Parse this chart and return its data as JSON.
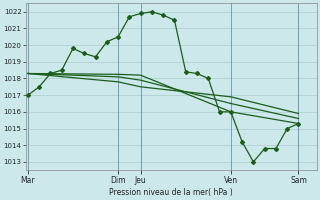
{
  "bg_color": "#cce8ea",
  "grid_color": "#aacccc",
  "line_color": "#1a5e1a",
  "x_ticks_labels": [
    "Mar",
    "Dim",
    "Jeu",
    "Ven",
    "Sam"
  ],
  "x_ticks_pos": [
    0,
    4,
    5,
    9,
    12
  ],
  "ylabel_text": "Pression niveau de la mer( hPa )",
  "ylim": [
    1012.5,
    1022.5
  ],
  "yticks": [
    1013,
    1014,
    1015,
    1016,
    1017,
    1018,
    1019,
    1020,
    1021,
    1022
  ],
  "xlim": [
    -0.1,
    12.8
  ],
  "vlines_x": [
    0,
    4,
    5,
    9,
    12
  ],
  "series1_x": [
    0,
    0.5,
    1.0,
    1.5,
    2.0,
    2.5,
    3.0,
    3.5,
    4.0,
    4.5,
    5.0,
    5.5,
    6.0,
    6.5,
    7.0,
    7.5,
    8.0,
    8.5,
    9.0,
    9.5,
    10.0,
    10.5,
    11.0,
    11.5,
    12.0
  ],
  "series1_y": [
    1017.0,
    1017.5,
    1018.3,
    1018.5,
    1019.8,
    1019.5,
    1019.3,
    1020.2,
    1020.5,
    1021.7,
    1021.9,
    1022.0,
    1021.8,
    1021.5,
    1018.4,
    1018.3,
    1018.0,
    1016.0,
    1016.0,
    1014.2,
    1013.0,
    1013.8,
    1013.8,
    1015.0,
    1015.3
  ],
  "series2_x": [
    0,
    4,
    5,
    9,
    12
  ],
  "series2_y": [
    1018.3,
    1018.25,
    1018.2,
    1016.0,
    1015.3
  ],
  "series3_x": [
    0,
    4,
    5,
    9,
    12
  ],
  "series3_y": [
    1018.3,
    1018.1,
    1017.9,
    1016.5,
    1015.6
  ],
  "series4_x": [
    0,
    4,
    5,
    9,
    12
  ],
  "series4_y": [
    1018.3,
    1017.8,
    1017.5,
    1016.9,
    1015.9
  ]
}
